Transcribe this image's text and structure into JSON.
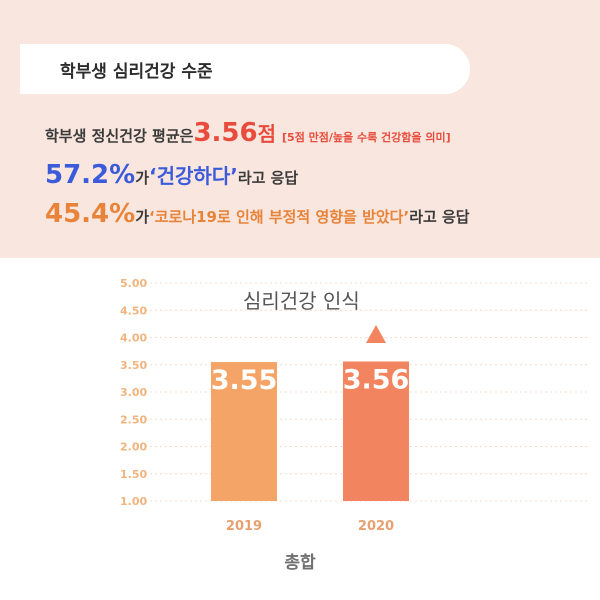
{
  "header": {
    "title": "학부생 심리건강 수준"
  },
  "summary": {
    "line1": {
      "prefix": "학부생 정신건강 평균은 ",
      "value": "3.56",
      "unit": "점",
      "note": "[5점 만점/높을 수록 건강함을 의미]"
    },
    "line2": {
      "value": "57.2%",
      "particle": "가 ",
      "quote": "‘건강하다’",
      "suffix": " 라고 응답"
    },
    "line3": {
      "value": "45.4%",
      "particle": "가 ",
      "quote": "‘코로나19로 인해 부정적 영향을 받았다’",
      "suffix": " 라고 응답"
    }
  },
  "colors": {
    "band_bg": "#f9e6de",
    "red": "#e84c3d",
    "blue": "#3b5bdb",
    "orange": "#e8833a",
    "bar_2019": "#f5a467",
    "bar_2020": "#f28560",
    "arrow": "#f28560"
  },
  "chart_data": {
    "type": "bar",
    "title": "심리건강 인식",
    "xlabel": "총합",
    "ylabel": "",
    "categories": [
      "2019",
      "2020"
    ],
    "values": [
      3.55,
      3.56
    ],
    "value_labels": [
      "3.55",
      "3.56"
    ],
    "ylim": [
      1.0,
      5.0
    ],
    "yticks": [
      "5.00",
      "4.50",
      "4.00",
      "3.50",
      "3.00",
      "2.50",
      "2.00",
      "1.50",
      "1.00"
    ],
    "grid": true,
    "trend_marker": "up-arrow"
  }
}
